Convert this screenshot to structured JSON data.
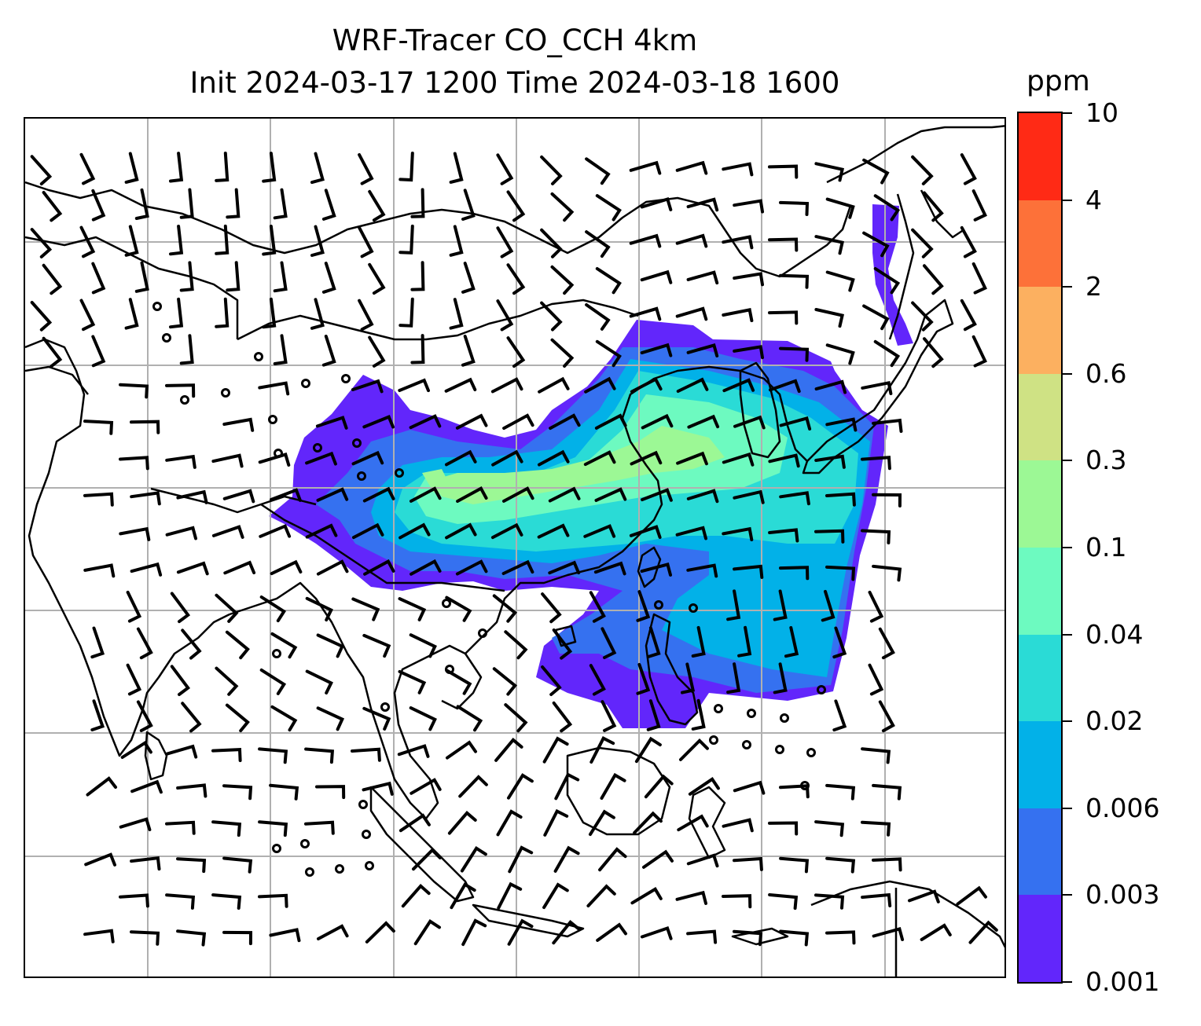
{
  "title": {
    "line1": "WRF-Tracer CO_CCH 4km",
    "line2": "Init 2024-03-17 1200 Time 2024-03-18 1600"
  },
  "colorbar": {
    "unit": "ppm",
    "labels": [
      "0.001",
      "0.003",
      "0.006",
      "0.02",
      "0.04",
      "0.1",
      "0.3",
      "0.6",
      "2",
      "4",
      "10"
    ],
    "colors": [
      "#6226fb",
      "#3571f0",
      "#02b1e8",
      "#2adbd6",
      "#6dfac0",
      "#9cf895",
      "#cfe284",
      "#fcb060",
      "#fd7139",
      "#ff2a15"
    ]
  },
  "map": {
    "gridlines": true,
    "grid_color": "#b0b0b0",
    "coastline_color": "#000000",
    "wind_barb_color": "#000000",
    "tracer_plume": "CO concentration shaded with wind barbs over East and Southeast Asia"
  }
}
